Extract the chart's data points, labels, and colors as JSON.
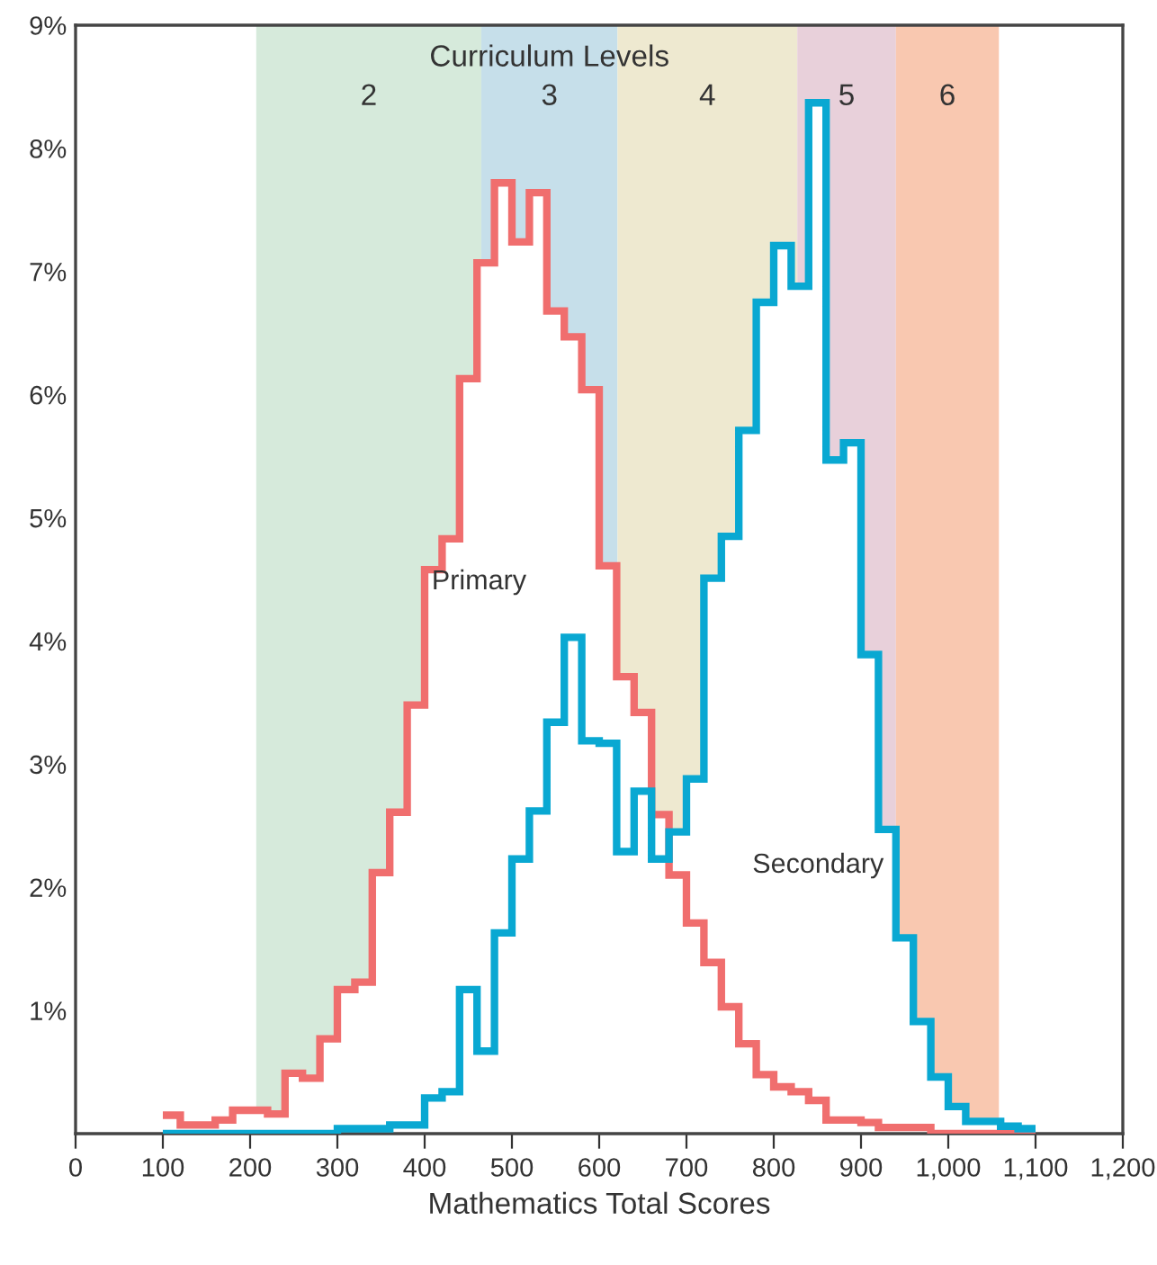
{
  "chart_data": {
    "type": "histogram",
    "xlabel": "Mathematics Total Scores",
    "annotations": [
      "Curriculum Levels"
    ],
    "bins": [
      100,
      120,
      140,
      160,
      180,
      200,
      220,
      240,
      260,
      280,
      300,
      320,
      340,
      360,
      380,
      400,
      420,
      440,
      460,
      480,
      500,
      520,
      540,
      560,
      580,
      600,
      620,
      640,
      660,
      680,
      700,
      720,
      740,
      760,
      780,
      800,
      820,
      840,
      860,
      880,
      900,
      920,
      940,
      960,
      980,
      1000,
      1020,
      1040,
      1060,
      1080,
      1100
    ],
    "series": [
      {
        "name": "Primary",
        "color": "#f06e6e",
        "values": [
          0.15,
          0.07,
          0.07,
          0.11,
          0.19,
          0.19,
          0.16,
          0.49,
          0.45,
          0.77,
          1.17,
          1.23,
          2.12,
          2.61,
          3.48,
          4.58,
          4.83,
          6.13,
          7.07,
          7.72,
          7.24,
          7.64,
          6.68,
          6.47,
          6.04,
          4.61,
          3.71,
          3.42,
          2.59,
          2.1,
          1.71,
          1.39,
          1.03,
          0.73,
          0.48,
          0.38,
          0.34,
          0.27,
          0.11,
          0.11,
          0.09,
          0.05,
          0.05,
          0.05,
          0,
          0,
          0,
          0,
          0,
          0
        ]
      },
      {
        "name": "Secondary",
        "color": "#09a8d2",
        "values": [
          0,
          0,
          0,
          0,
          0,
          0,
          0,
          0,
          0,
          0,
          0.04,
          0.04,
          0.04,
          0.07,
          0.07,
          0.29,
          0.34,
          1.17,
          0.67,
          1.63,
          2.23,
          2.62,
          3.34,
          4.03,
          3.19,
          3.17,
          2.29,
          2.78,
          2.23,
          2.45,
          2.88,
          4.51,
          4.85,
          5.71,
          6.75,
          7.21,
          6.88,
          8.37,
          5.47,
          5.61,
          3.89,
          2.47,
          1.59,
          0.91,
          0.46,
          0.22,
          0.1,
          0.1,
          0.06,
          0.04
        ]
      }
    ],
    "bands": [
      {
        "axis": "x",
        "from": 207,
        "to": 465,
        "label": "2",
        "color": "#d6eadb"
      },
      {
        "axis": "x",
        "from": 465,
        "to": 621,
        "label": "3",
        "color": "#c6dfea"
      },
      {
        "axis": "x",
        "from": 621,
        "to": 827,
        "label": "4",
        "color": "#eee9d0"
      },
      {
        "axis": "x",
        "from": 827,
        "to": 940,
        "label": "5",
        "color": "#e8d0da"
      },
      {
        "axis": "x",
        "from": 940,
        "to": 1058,
        "label": "6",
        "color": "#f9c8b0"
      }
    ],
    "xlim": [
      0,
      1200
    ],
    "ylim": [
      0,
      9
    ],
    "xticks": [
      0,
      100,
      200,
      300,
      400,
      500,
      600,
      700,
      800,
      900,
      {
        "value": 1000,
        "label": "1,000"
      },
      {
        "value": 1100,
        "label": "1,100"
      },
      {
        "value": 1200,
        "label": "1,200"
      }
    ],
    "yticks": [
      {
        "value": 1,
        "label": "1%"
      },
      {
        "value": 2,
        "label": "2%"
      },
      {
        "value": 3,
        "label": "3%"
      },
      {
        "value": 4,
        "label": "4%"
      },
      {
        "value": 5,
        "label": "5%"
      },
      {
        "value": 6,
        "label": "6%"
      },
      {
        "value": 7,
        "label": "7%"
      },
      {
        "value": 8,
        "label": "8%"
      },
      {
        "value": 9,
        "label": "9%"
      }
    ],
    "grid": false,
    "legend": false
  }
}
